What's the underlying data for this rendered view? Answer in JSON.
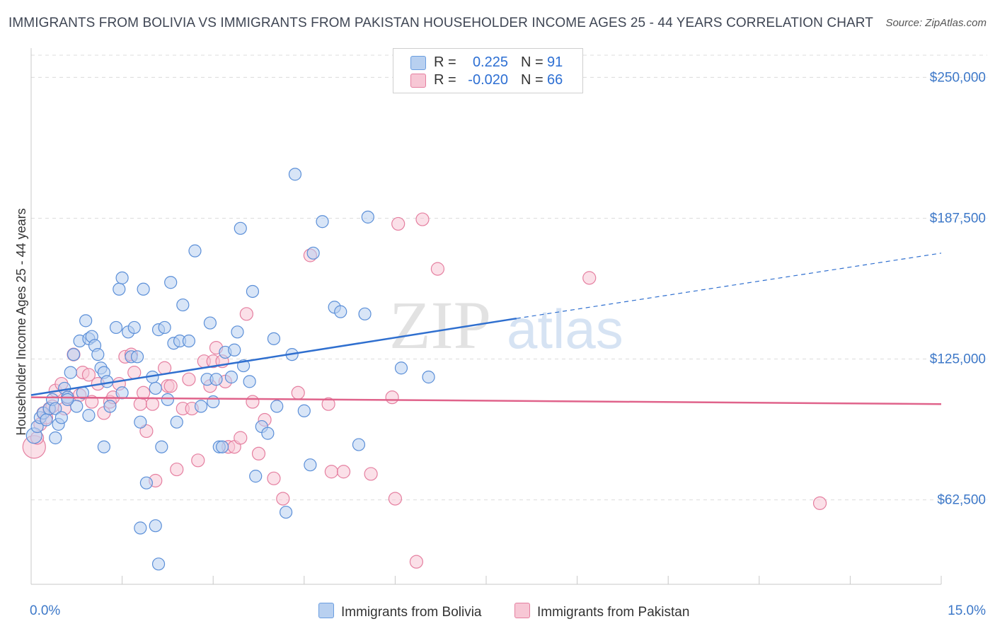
{
  "header": {
    "title": "IMMIGRANTS FROM BOLIVIA VS IMMIGRANTS FROM PAKISTAN HOUSEHOLDER INCOME AGES 25 - 44 YEARS CORRELATION CHART",
    "source": "Source: ZipAtlas.com"
  },
  "legend": {
    "rows": [
      {
        "r_label": "R =",
        "r_value": "0.225",
        "n_label": "N =",
        "n_value": "91",
        "color": "#6b9ee0",
        "fill": "#b8d0f0"
      },
      {
        "r_label": "R =",
        "r_value": "-0.020",
        "n_label": "N =",
        "n_value": "66",
        "color": "#e57fa0",
        "fill": "#f7c7d5"
      }
    ]
  },
  "watermark": {
    "zip": "ZIP",
    "atlas": "atlas"
  },
  "chart_data": {
    "type": "scatter",
    "title": "IMMIGRANTS FROM BOLIVIA VS IMMIGRANTS FROM PAKISTAN HOUSEHOLDER INCOME AGES 25 - 44 YEARS CORRELATION CHART",
    "xlabel": "",
    "ylabel": "Householder Income Ages 25 - 44 years",
    "xlim": [
      0,
      15
    ],
    "ylim": [
      25000,
      263000
    ],
    "x_tick_labels": [
      "0.0%",
      "15.0%"
    ],
    "y_ticks": [
      62500,
      125000,
      187500,
      250000
    ],
    "y_tick_labels": [
      "$62,500",
      "$125,000",
      "$187,500",
      "$250,000"
    ],
    "grid": true,
    "legend_position": "top-center",
    "series": [
      {
        "name": "Immigrants from Bolivia",
        "color": "#5b8fd8",
        "fill": "#b8d0f0",
        "trend": {
          "x0": 0,
          "y0": 109000,
          "x1": 8.0,
          "y1": 143000,
          "x_dash_end": 15.0,
          "y_dash_end": 172000
        },
        "points": [
          [
            0.05,
            91000
          ],
          [
            0.1,
            95000
          ],
          [
            0.15,
            99000
          ],
          [
            0.2,
            101000
          ],
          [
            0.25,
            98000
          ],
          [
            0.3,
            103000
          ],
          [
            0.35,
            107000
          ],
          [
            0.4,
            103000
          ],
          [
            0.45,
            96000
          ],
          [
            0.5,
            99000
          ],
          [
            0.55,
            112000
          ],
          [
            0.6,
            108000
          ],
          [
            0.65,
            119000
          ],
          [
            0.7,
            127000
          ],
          [
            0.75,
            104000
          ],
          [
            0.8,
            133000
          ],
          [
            0.85,
            110000
          ],
          [
            0.9,
            142000
          ],
          [
            0.95,
            134000
          ],
          [
            1.0,
            135000
          ],
          [
            1.05,
            131000
          ],
          [
            1.1,
            127000
          ],
          [
            1.15,
            121000
          ],
          [
            1.2,
            119000
          ],
          [
            1.25,
            115000
          ],
          [
            1.3,
            104000
          ],
          [
            1.4,
            139000
          ],
          [
            1.45,
            156000
          ],
          [
            1.5,
            161000
          ],
          [
            1.6,
            137000
          ],
          [
            1.65,
            126000
          ],
          [
            1.7,
            139000
          ],
          [
            1.75,
            126000
          ],
          [
            1.8,
            97000
          ],
          [
            1.85,
            156000
          ],
          [
            1.9,
            70000
          ],
          [
            2.0,
            117000
          ],
          [
            2.05,
            112000
          ],
          [
            2.1,
            138000
          ],
          [
            2.2,
            139000
          ],
          [
            2.25,
            107000
          ],
          [
            2.3,
            159000
          ],
          [
            2.35,
            132000
          ],
          [
            2.4,
            97000
          ],
          [
            2.45,
            133000
          ],
          [
            2.5,
            149000
          ],
          [
            2.6,
            133000
          ],
          [
            2.7,
            173000
          ],
          [
            2.8,
            104000
          ],
          [
            2.9,
            116000
          ],
          [
            2.95,
            141000
          ],
          [
            3.0,
            106000
          ],
          [
            3.05,
            116000
          ],
          [
            3.1,
            86000
          ],
          [
            3.15,
            86000
          ],
          [
            3.2,
            128000
          ],
          [
            3.3,
            117000
          ],
          [
            3.35,
            129000
          ],
          [
            3.4,
            137000
          ],
          [
            3.45,
            183000
          ],
          [
            3.5,
            122000
          ],
          [
            3.6,
            115000
          ],
          [
            3.65,
            155000
          ],
          [
            3.7,
            73000
          ],
          [
            3.8,
            95000
          ],
          [
            3.9,
            92000
          ],
          [
            4.0,
            134000
          ],
          [
            4.05,
            104000
          ],
          [
            4.2,
            57000
          ],
          [
            4.3,
            127000
          ],
          [
            4.35,
            207000
          ],
          [
            4.5,
            102000
          ],
          [
            4.6,
            78000
          ],
          [
            4.65,
            172000
          ],
          [
            4.8,
            186000
          ],
          [
            5.0,
            148000
          ],
          [
            5.1,
            146000
          ],
          [
            5.4,
            87000
          ],
          [
            5.5,
            145000
          ],
          [
            5.55,
            188000
          ],
          [
            6.1,
            121000
          ],
          [
            6.55,
            117000
          ],
          [
            0.4,
            90000
          ],
          [
            1.2,
            86000
          ],
          [
            1.8,
            50000
          ],
          [
            2.05,
            51000
          ],
          [
            2.1,
            34000
          ],
          [
            2.15,
            86000
          ],
          [
            0.6,
            107000
          ],
          [
            0.95,
            100000
          ],
          [
            1.5,
            110000
          ]
        ]
      },
      {
        "name": "Immigrants from Pakistan",
        "color": "#e57fa0",
        "fill": "#f7c7d5",
        "trend": {
          "x0": 0,
          "y0": 108000,
          "x1": 15.0,
          "y1": 105000
        },
        "points": [
          [
            0.05,
            86000
          ],
          [
            0.1,
            90000
          ],
          [
            0.15,
            96000
          ],
          [
            0.2,
            101000
          ],
          [
            0.25,
            99000
          ],
          [
            0.3,
            103000
          ],
          [
            0.35,
            104000
          ],
          [
            0.4,
            111000
          ],
          [
            0.5,
            114000
          ],
          [
            0.55,
            103000
          ],
          [
            0.6,
            108000
          ],
          [
            0.7,
            127000
          ],
          [
            0.8,
            109000
          ],
          [
            0.85,
            119000
          ],
          [
            0.95,
            118000
          ],
          [
            1.0,
            106000
          ],
          [
            1.1,
            114000
          ],
          [
            1.2,
            101000
          ],
          [
            1.3,
            106000
          ],
          [
            1.35,
            108000
          ],
          [
            1.45,
            114000
          ],
          [
            1.55,
            126000
          ],
          [
            1.65,
            127000
          ],
          [
            1.7,
            119000
          ],
          [
            1.8,
            105000
          ],
          [
            1.85,
            110000
          ],
          [
            1.9,
            93000
          ],
          [
            2.0,
            105000
          ],
          [
            2.05,
            71000
          ],
          [
            2.2,
            121000
          ],
          [
            2.25,
            113000
          ],
          [
            2.3,
            113000
          ],
          [
            2.4,
            76000
          ],
          [
            2.5,
            103000
          ],
          [
            2.6,
            116000
          ],
          [
            2.65,
            103000
          ],
          [
            2.75,
            80000
          ],
          [
            2.85,
            124000
          ],
          [
            2.95,
            113000
          ],
          [
            3.0,
            124000
          ],
          [
            3.05,
            130000
          ],
          [
            3.15,
            124000
          ],
          [
            3.25,
            86000
          ],
          [
            3.35,
            86000
          ],
          [
            3.45,
            90000
          ],
          [
            3.55,
            145000
          ],
          [
            3.65,
            106000
          ],
          [
            3.75,
            83000
          ],
          [
            3.85,
            98000
          ],
          [
            4.0,
            72000
          ],
          [
            4.15,
            63000
          ],
          [
            4.4,
            110000
          ],
          [
            4.6,
            171000
          ],
          [
            4.9,
            105000
          ],
          [
            4.95,
            75000
          ],
          [
            5.15,
            75000
          ],
          [
            5.6,
            74000
          ],
          [
            5.95,
            108000
          ],
          [
            6.0,
            63000
          ],
          [
            6.05,
            185000
          ],
          [
            6.45,
            187000
          ],
          [
            6.7,
            165000
          ],
          [
            6.35,
            35000
          ],
          [
            9.2,
            161000
          ],
          [
            13.0,
            61000
          ],
          [
            3.2,
            115000
          ]
        ]
      }
    ]
  },
  "bottom_legend": {
    "items": [
      {
        "label": "Immigrants from Bolivia"
      },
      {
        "label": "Immigrants from Pakistan"
      }
    ]
  }
}
